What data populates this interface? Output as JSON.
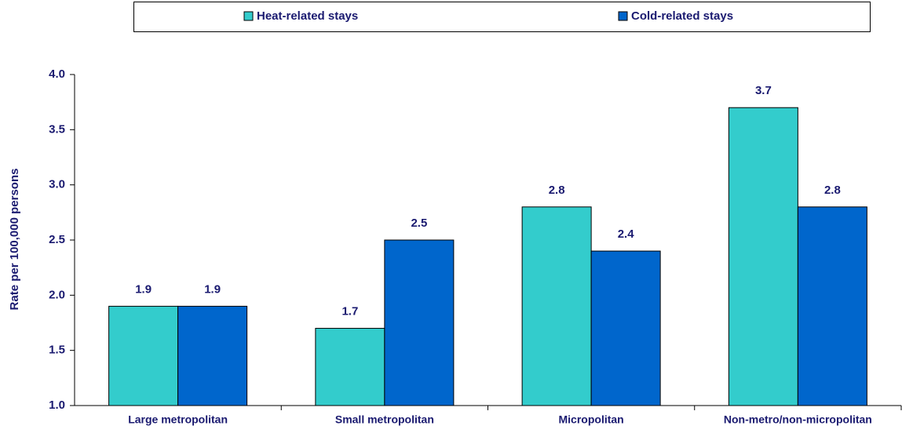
{
  "chart_data": {
    "type": "bar",
    "ylabel": "Rate per 100,000 persons",
    "categories": [
      "Large metropolitan",
      "Small metropolitan",
      "Micropolitan",
      "Non-metro/non-micropolitan"
    ],
    "series": [
      {
        "name": "Heat-related stays",
        "color": "#33cccc",
        "values": [
          1.9,
          1.7,
          2.8,
          3.7
        ]
      },
      {
        "name": "Cold-related stays",
        "color": "#0066cc",
        "values": [
          1.9,
          2.5,
          2.4,
          2.8
        ]
      }
    ],
    "ylim": [
      1.0,
      4.0
    ],
    "yticks": [
      {
        "value": 1,
        "label": "1.0"
      },
      {
        "value": 1.5,
        "label": "1.5"
      },
      {
        "value": 2,
        "label": "2.0"
      },
      {
        "value": 2.5,
        "label": "2.5"
      },
      {
        "value": 3,
        "label": "3.0"
      },
      {
        "value": 3.5,
        "label": "3.5"
      },
      {
        "value": 4,
        "label": "4.0"
      }
    ],
    "legend": "top"
  }
}
